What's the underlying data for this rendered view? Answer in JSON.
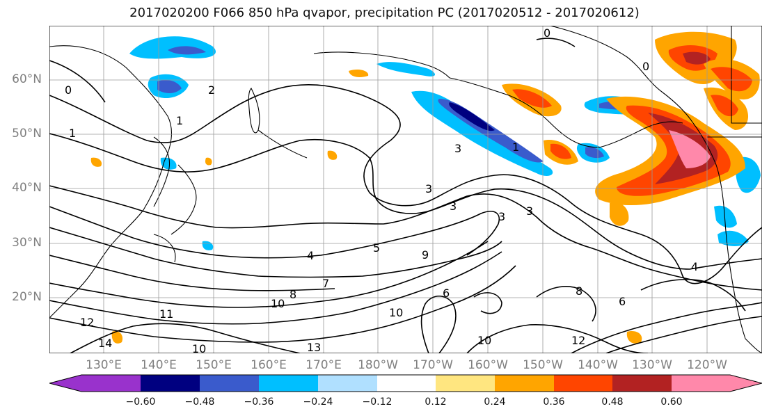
{
  "title": "2017020200 F066 850 hPa qvapor, precipitation PC (2017020512 - 2017020612)",
  "lat_labels": [
    "60°N",
    "50°N",
    "40°N",
    "30°N",
    "20°N"
  ],
  "lon_labels": [
    "130°E",
    "140°E",
    "150°E",
    "160°E",
    "170°E",
    "180°W",
    "170°W",
    "160°W",
    "150°W",
    "140°W",
    "130°W",
    "120°W"
  ],
  "colorbar": {
    "tick_labels": [
      "−0.60",
      "−0.48",
      "−0.36",
      "−0.24",
      "−0.12",
      "0.12",
      "0.24",
      "0.36",
      "0.48",
      "0.60"
    ],
    "colors": [
      "#9932cc",
      "#000080",
      "#3a5bcc",
      "#00bfff",
      "#b0e0ff",
      "#ffffff",
      "#ffe680",
      "#ffa500",
      "#ff4500",
      "#b22222",
      "#ff88aa"
    ]
  },
  "contour_labels": [
    "1",
    "2",
    "1",
    "3",
    "1",
    "3",
    "3",
    "3",
    "3",
    "4",
    "5",
    "7",
    "8",
    "9",
    "10",
    "11",
    "12",
    "14",
    "13",
    "10",
    "6",
    "8",
    "10",
    "12",
    "6",
    "4",
    "0",
    "0",
    "0",
    "10"
  ],
  "colors": {
    "land_outline": "#000000",
    "grid": "#9a9a9a",
    "contour": "#000000"
  }
}
